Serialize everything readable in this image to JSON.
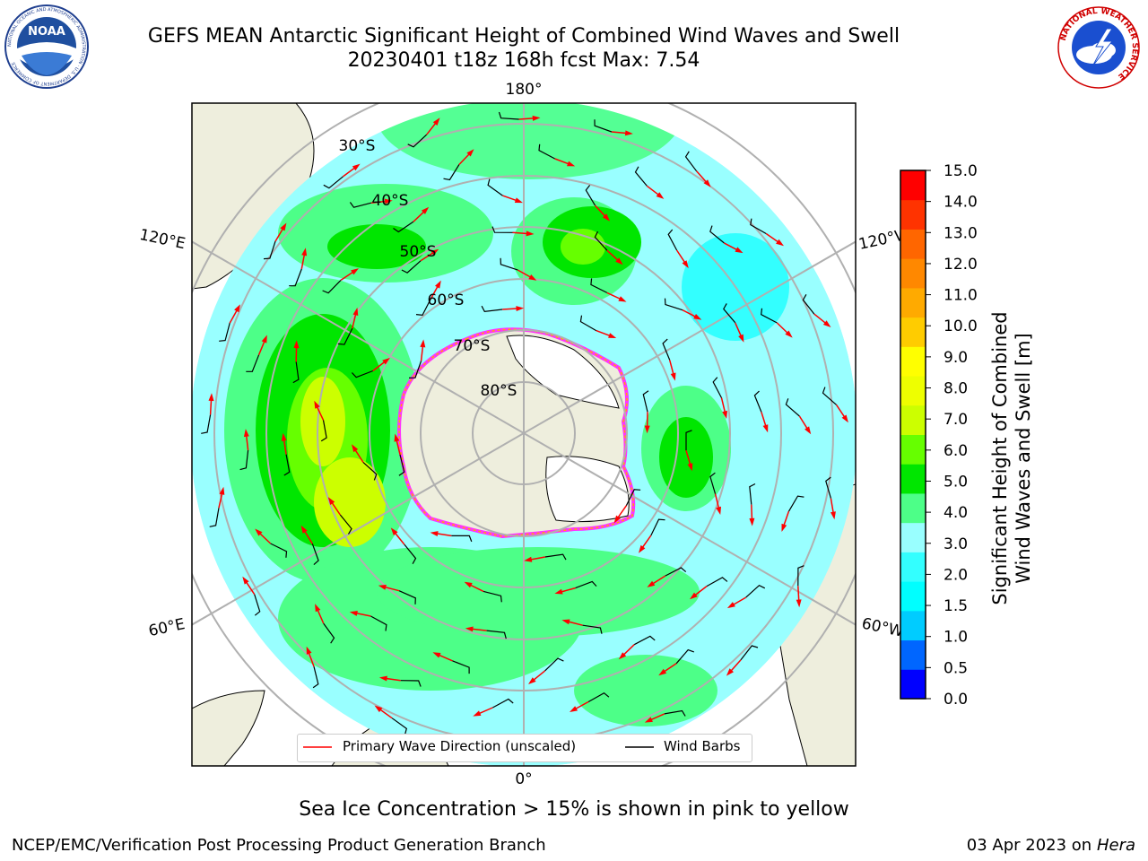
{
  "header": {
    "title_line1": "GEFS MEAN Antarctic Significant Height of Combined Wind Waves and Swell",
    "title_line2": "20230401 t18z 168h fcst   Max: 7.54"
  },
  "logos": {
    "noaa": "NOAA",
    "noaa_ring": "NATIONAL OCEANIC AND ATMOSPHERIC ADMINISTRATION · U.S. DEPARTMENT OF COMMERCE",
    "nws_ring": "NATIONAL WEATHER SERVICE"
  },
  "map": {
    "lon_labels": {
      "top": "180°",
      "bottom": "0°",
      "left_upper": "120°E",
      "left_lower": "60°E",
      "right_upper": "120°W",
      "right_lower": "60°W"
    },
    "lat_labels": [
      "30°S",
      "40°S",
      "50°S",
      "60°S",
      "70°S",
      "80°S"
    ]
  },
  "legend": {
    "wave_direction": "Primary Wave Direction (unscaled)",
    "wind_barbs": "Wind Barbs",
    "wave_color": "#ff0000",
    "barb_color": "#000000"
  },
  "colorbar": {
    "title_line1": "Significant Height of Combined",
    "title_line2": "Wind Waves and Swell [m]",
    "ticks": [
      "0.0",
      "0.5",
      "1.0",
      "1.5",
      "2.0",
      "3.0",
      "4.0",
      "5.0",
      "6.0",
      "7.0",
      "8.0",
      "9.0",
      "10.0",
      "11.0",
      "12.0",
      "13.0",
      "14.0",
      "15.0"
    ],
    "colors": [
      "#0000ff",
      "#0066ff",
      "#00ccff",
      "#00ffff",
      "#33ffff",
      "#99ffff",
      "#4dff88",
      "#00e600",
      "#66ff00",
      "#ccff00",
      "#eeff00",
      "#ffff00",
      "#ffcc00",
      "#ffaa00",
      "#ff8800",
      "#ff6600",
      "#ff3300",
      "#ff0000"
    ]
  },
  "subtitle": "Sea Ice Concentration > 15% is shown in pink to yellow",
  "footer": {
    "left": "NCEP/EMC/Verification Post Processing Product Generation Branch",
    "right_date": "03 Apr 2023 on ",
    "right_host": "Hera"
  }
}
